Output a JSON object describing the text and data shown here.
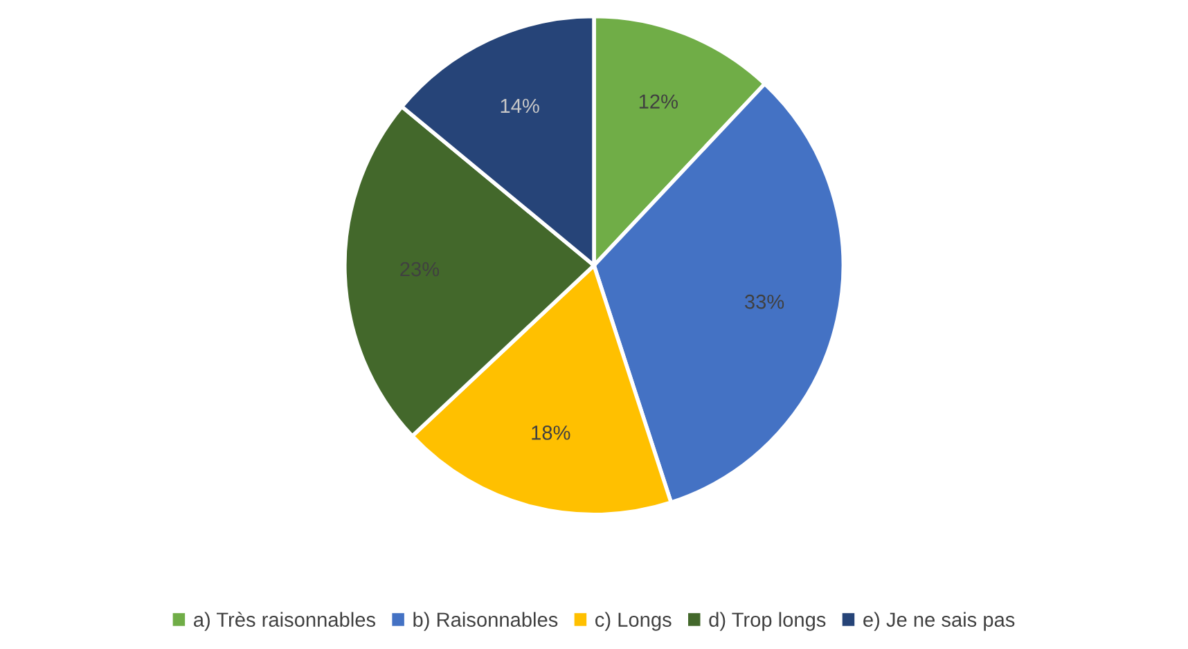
{
  "chart_data": {
    "type": "pie",
    "categories": [
      "a) Très raisonnables",
      "b) Raisonnables",
      "c) Longs",
      "d) Trop longs",
      "e) Je ne sais pas"
    ],
    "values": [
      12,
      33,
      18,
      23,
      14
    ],
    "value_labels": [
      "12%",
      "33%",
      "18%",
      "23%",
      "14%"
    ],
    "colors": [
      "#70ad47",
      "#4472c4",
      "#ffc000",
      "#43682b",
      "#264478"
    ],
    "legend": "bottom"
  }
}
